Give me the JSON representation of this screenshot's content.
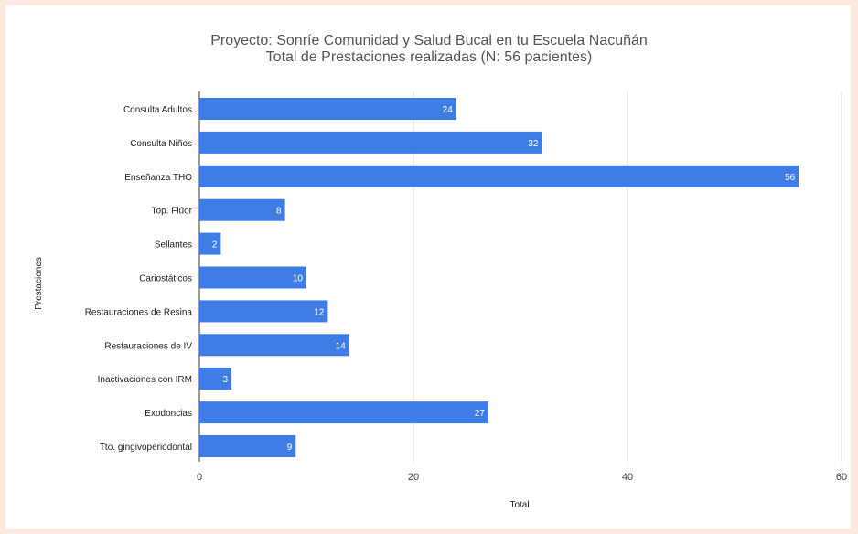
{
  "chart_data": {
    "type": "bar",
    "orientation": "horizontal",
    "title": "Proyecto: Sonríe Comunidad y Salud Bucal en tu Escuela Nacuñán",
    "subtitle": "Total de Prestaciones realizadas (N: 56 pacientes)",
    "xlabel": "Total",
    "ylabel": "Prestaciones",
    "xlim": [
      0,
      60
    ],
    "xticks": [
      "0",
      "20",
      "40",
      "60"
    ],
    "grid": true,
    "legend": "none",
    "colors": {
      "bar": "#3f7de6",
      "grid": "#d9d9d9",
      "axis": "#333333"
    },
    "categories": [
      "Consulta Adultos",
      "Consulta Niños",
      "Enseñanza THO",
      "Top. Flúor",
      "Sellantes",
      "Cariostáticos",
      "Restauraciones de Resina",
      "Restauraciones de IV",
      "Inactivaciones con IRM",
      "Exodoncias",
      "Tto. gingivoperiodontal"
    ],
    "values": [
      24,
      32,
      56,
      8,
      2,
      10,
      12,
      14,
      3,
      27,
      9
    ]
  }
}
